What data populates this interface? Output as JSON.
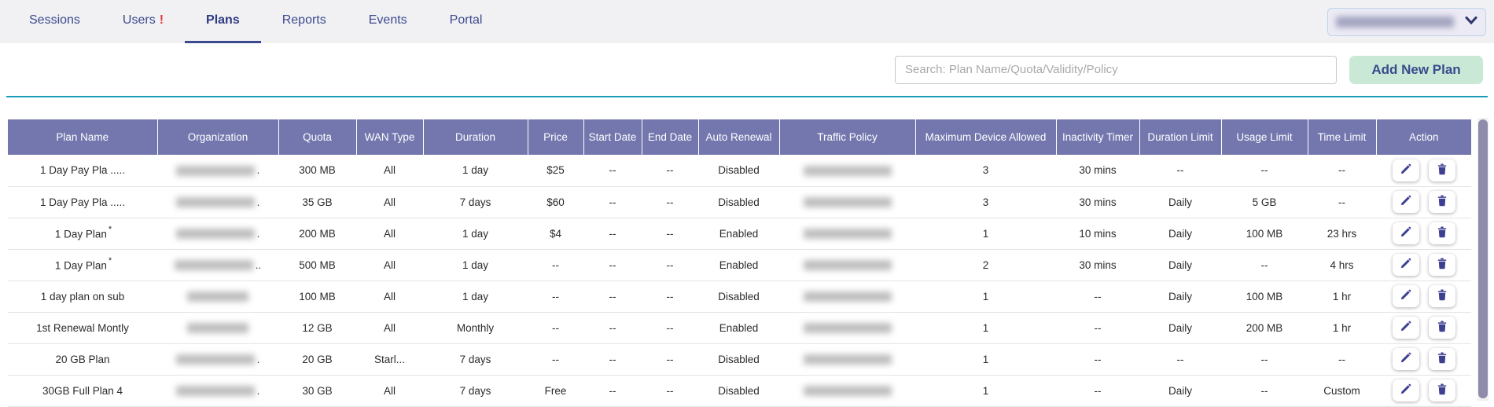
{
  "tabs": [
    {
      "label": "Sessions",
      "active": false,
      "badge": ""
    },
    {
      "label": "Users",
      "active": false,
      "badge": "!"
    },
    {
      "label": "Plans",
      "active": true,
      "badge": ""
    },
    {
      "label": "Reports",
      "active": false,
      "badge": ""
    },
    {
      "label": "Events",
      "active": false,
      "badge": ""
    },
    {
      "label": "Portal",
      "active": false,
      "badge": ""
    }
  ],
  "org_selector": {
    "redacted": true,
    "icon": "chevron-down-icon"
  },
  "toolbar": {
    "search_placeholder": "Search: Plan Name/Quota/Validity/Policy",
    "add_button": "Add New Plan"
  },
  "table": {
    "columns": [
      "Plan Name",
      "Organization",
      "Quota",
      "WAN Type",
      "Duration",
      "Price",
      "Start Date",
      "End Date",
      "Auto Renewal",
      "Traffic Policy",
      "Maximum Device Allowed",
      "Inactivity Timer",
      "Duration Limit",
      "Usage Limit",
      "Time Limit",
      "Action"
    ],
    "actions": [
      {
        "name": "edit",
        "icon": "pencil-icon"
      },
      {
        "name": "delete",
        "icon": "trash-icon"
      }
    ],
    "rows": [
      {
        "plan": "1 Day Pay Pla .....",
        "plan_sup": "",
        "org_redacted": true,
        "org_suffix": ".",
        "org_size": "md",
        "quota": "300 MB",
        "wan": "All",
        "duration": "1 day",
        "price": "$25",
        "start": "--",
        "end": "--",
        "auto_renewal": "Disabled",
        "policy_redacted": true,
        "max_device": "3",
        "inactivity": "30 mins",
        "duration_limit": "--",
        "usage_limit": "--",
        "time_limit": "--"
      },
      {
        "plan": "1 Day Pay Pla .....",
        "plan_sup": "",
        "org_redacted": true,
        "org_suffix": ".",
        "org_size": "md",
        "quota": "35 GB",
        "wan": "All",
        "duration": "7 days",
        "price": "$60",
        "start": "--",
        "end": "--",
        "auto_renewal": "Disabled",
        "policy_redacted": true,
        "max_device": "3",
        "inactivity": "30 mins",
        "duration_limit": "Daily",
        "usage_limit": "5 GB",
        "time_limit": "--"
      },
      {
        "plan": "1 Day Plan",
        "plan_sup": "*",
        "org_redacted": true,
        "org_suffix": ".",
        "org_size": "md",
        "quota": "200 MB",
        "wan": "All",
        "duration": "1 day",
        "price": "$4",
        "start": "--",
        "end": "--",
        "auto_renewal": "Enabled",
        "policy_redacted": true,
        "max_device": "1",
        "inactivity": "10 mins",
        "duration_limit": "Daily",
        "usage_limit": "100 MB",
        "time_limit": "23 hrs"
      },
      {
        "plan": "1 Day Plan",
        "plan_sup": "*",
        "org_redacted": true,
        "org_suffix": "..",
        "org_size": "md",
        "quota": "500 MB",
        "wan": "All",
        "duration": "1 day",
        "price": "--",
        "start": "--",
        "end": "--",
        "auto_renewal": "Enabled",
        "policy_redacted": true,
        "max_device": "2",
        "inactivity": "30 mins",
        "duration_limit": "Daily",
        "usage_limit": "--",
        "time_limit": "4 hrs"
      },
      {
        "plan": "1 day plan on sub",
        "plan_sup": "",
        "org_redacted": true,
        "org_suffix": "",
        "org_size": "sm",
        "quota": "100 MB",
        "wan": "All",
        "duration": "1 day",
        "price": "--",
        "start": "--",
        "end": "--",
        "auto_renewal": "Disabled",
        "policy_redacted": true,
        "max_device": "1",
        "inactivity": "--",
        "duration_limit": "Daily",
        "usage_limit": "100 MB",
        "time_limit": "1 hr"
      },
      {
        "plan": "1st Renewal Montly",
        "plan_sup": "",
        "org_redacted": true,
        "org_suffix": "",
        "org_size": "sm",
        "quota": "12 GB",
        "wan": "All",
        "duration": "Monthly",
        "price": "--",
        "start": "--",
        "end": "--",
        "auto_renewal": "Enabled",
        "policy_redacted": true,
        "max_device": "1",
        "inactivity": "--",
        "duration_limit": "Daily",
        "usage_limit": "200 MB",
        "time_limit": "1 hr"
      },
      {
        "plan": "20 GB Plan",
        "plan_sup": "",
        "org_redacted": true,
        "org_suffix": ".",
        "org_size": "md",
        "quota": "20 GB",
        "wan": "Starl...",
        "duration": "7 days",
        "price": "--",
        "start": "--",
        "end": "--",
        "auto_renewal": "Disabled",
        "policy_redacted": true,
        "max_device": "1",
        "inactivity": "--",
        "duration_limit": "--",
        "usage_limit": "--",
        "time_limit": "--"
      },
      {
        "plan": "30GB Full Plan 4",
        "plan_sup": "",
        "org_redacted": true,
        "org_suffix": ".",
        "org_size": "md",
        "quota": "30 GB",
        "wan": "All",
        "duration": "7 days",
        "price": "Free",
        "start": "--",
        "end": "--",
        "auto_renewal": "Disabled",
        "policy_redacted": true,
        "max_device": "1",
        "inactivity": "--",
        "duration_limit": "Daily",
        "usage_limit": "--",
        "time_limit": "Custom"
      }
    ]
  },
  "colors": {
    "accent_teal": "#1a9cb5",
    "table_header_bg": "#7377ae",
    "tab_active": "#2e3b80",
    "add_button_bg": "#c9e8d6",
    "alert_red": "#e5383b",
    "icon_navy": "#3d3f91"
  }
}
